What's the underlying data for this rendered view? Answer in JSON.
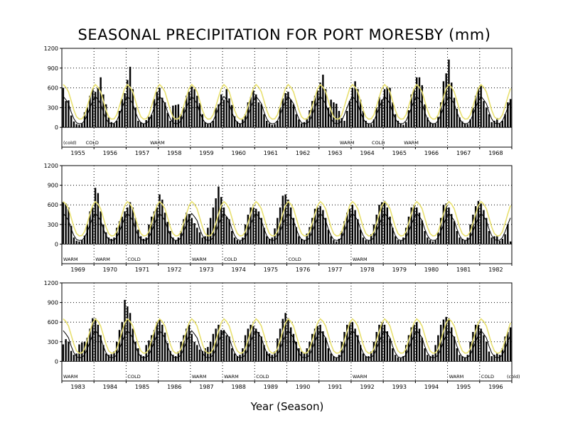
{
  "chart_data": {
    "type": "bar",
    "title": "SEASONAL PRECIPITATION FOR PORT MORESBY (mm)",
    "xlabel": "Year (Season)",
    "ylim": [
      0,
      1200
    ],
    "yticks": [
      0,
      300,
      600,
      900,
      1200
    ],
    "grid": true,
    "colors": {
      "bars": "#000000",
      "mean_line": "#000000",
      "upper_line": "#e8e070"
    },
    "series_info": [
      "seasonal precipitation bars",
      "mean (black line)",
      "upper reference (yellow line)"
    ],
    "climatology": {
      "mean": [
        470,
        420,
        360,
        230,
        130,
        70,
        55,
        60,
        100,
        190,
        300,
        400
      ],
      "upper": [
        650,
        610,
        540,
        400,
        260,
        160,
        125,
        130,
        190,
        320,
        460,
        590
      ]
    },
    "panels": [
      {
        "years": [
          "1955",
          "1956",
          "1957",
          "1958",
          "1959",
          "1960",
          "1961",
          "1962",
          "1963",
          "1964",
          "1965",
          "1966",
          "1967",
          "1968"
        ],
        "bars": [
          [
            600,
            400,
            410,
            180,
            90,
            50,
            40,
            60,
            230,
            300,
            480,
            580
          ],
          [
            540,
            600,
            760,
            500,
            350,
            150,
            80,
            60,
            100,
            250,
            430,
            520
          ],
          [
            720,
            920,
            580,
            300,
            100,
            80,
            60,
            110,
            160,
            190,
            430,
            540
          ],
          [
            600,
            450,
            380,
            220,
            100,
            330,
            340,
            350,
            200,
            300,
            480,
            540
          ],
          [
            620,
            580,
            480,
            370,
            200,
            80,
            50,
            60,
            100,
            300,
            350,
            500
          ],
          [
            420,
            580,
            440,
            340,
            170,
            90,
            60,
            120,
            200,
            380,
            460,
            560
          ],
          [
            500,
            380,
            350,
            200,
            100,
            60,
            40,
            50,
            100,
            300,
            440,
            520
          ],
          [
            540,
            420,
            350,
            200,
            120,
            60,
            80,
            140,
            260,
            400,
            480,
            560
          ],
          [
            680,
            800,
            580,
            300,
            420,
            380,
            360,
            250,
            140,
            100,
            250,
            400
          ],
          [
            600,
            700,
            580,
            420,
            250,
            100,
            60,
            50,
            120,
            300,
            460,
            420
          ],
          [
            580,
            620,
            600,
            380,
            200,
            100,
            60,
            40,
            80,
            260,
            500,
            580
          ],
          [
            760,
            760,
            640,
            350,
            150,
            80,
            60,
            60,
            160,
            380,
            700,
            820
          ],
          [
            1030,
            680,
            450,
            280,
            150,
            90,
            60,
            50,
            120,
            300,
            480,
            590
          ],
          [
            640,
            400,
            300,
            200,
            80,
            100,
            140,
            60,
            100,
            200,
            380,
            430
          ]
        ],
        "annotations": [
          {
            "text": "(cold)",
            "year_index": 0.0
          },
          {
            "text": "COLD",
            "year_index": 0.7
          },
          {
            "text": "WARM",
            "year_index": 2.7
          },
          {
            "text": "WARM",
            "year_index": 8.6
          },
          {
            "text": "COLD",
            "year_index": 9.6
          },
          {
            "text": "WARM",
            "year_index": 10.6
          }
        ]
      },
      {
        "years": [
          "1969",
          "1970",
          "1971",
          "1972",
          "1973",
          "1974",
          "1975",
          "1976",
          "1977",
          "1978",
          "1979",
          "1980",
          "1981",
          "1982"
        ],
        "bars": [
          [
            640,
            620,
            560,
            280,
            100,
            50,
            40,
            60,
            130,
            300,
            500,
            560
          ],
          [
            860,
            780,
            500,
            300,
            180,
            100,
            80,
            100,
            250,
            350,
            420,
            500
          ],
          [
            560,
            640,
            560,
            400,
            220,
            120,
            80,
            100,
            300,
            420,
            500,
            560
          ],
          [
            760,
            680,
            480,
            340,
            200,
            100,
            60,
            100,
            200,
            380,
            480,
            460
          ],
          [
            400,
            320,
            250,
            180,
            100,
            120,
            250,
            400,
            560,
            700,
            880,
            720
          ],
          [
            560,
            420,
            380,
            200,
            100,
            60,
            50,
            100,
            300,
            450,
            560,
            560
          ],
          [
            540,
            500,
            400,
            250,
            120,
            80,
            100,
            240,
            400,
            560,
            740,
            760
          ],
          [
            680,
            560,
            400,
            260,
            120,
            80,
            60,
            160,
            260,
            400,
            540,
            560
          ],
          [
            580,
            520,
            400,
            220,
            120,
            60,
            40,
            80,
            200,
            350,
            480,
            540
          ],
          [
            600,
            520,
            380,
            220,
            100,
            60,
            60,
            150,
            300,
            450,
            600,
            640
          ],
          [
            660,
            560,
            420,
            250,
            120,
            60,
            60,
            100,
            250,
            420,
            560,
            600
          ],
          [
            560,
            480,
            360,
            200,
            100,
            60,
            40,
            60,
            180,
            400,
            600,
            620
          ],
          [
            560,
            460,
            350,
            200,
            100,
            80,
            60,
            100,
            300,
            450,
            580,
            660
          ],
          [
            620,
            520,
            400,
            200,
            100,
            120,
            130,
            50,
            80,
            150,
            300,
            40
          ]
        ],
        "annotations": [
          {
            "text": "WARM",
            "year_index": 0.0
          },
          {
            "text": "WARM",
            "year_index": 1.0
          },
          {
            "text": "COLD",
            "year_index": 2.0
          },
          {
            "text": "WARM",
            "year_index": 4.0
          },
          {
            "text": "COLD",
            "year_index": 5.0
          },
          {
            "text": "COLD",
            "year_index": 7.0
          },
          {
            "text": "WARM",
            "year_index": 9.0
          }
        ]
      },
      {
        "years": [
          "1983",
          "1984",
          "1985",
          "1986",
          "1987",
          "1988",
          "1989",
          "1990",
          "1991",
          "1992",
          "1993",
          "1994",
          "1995",
          "1996"
        ],
        "bars": [
          [
            260,
            340,
            300,
            160,
            100,
            120,
            260,
            290,
            300,
            360,
            500,
            660
          ],
          [
            660,
            560,
            400,
            250,
            120,
            100,
            110,
            150,
            300,
            480,
            600,
            940
          ],
          [
            840,
            740,
            500,
            300,
            200,
            100,
            80,
            250,
            320,
            400,
            480,
            600
          ],
          [
            640,
            560,
            440,
            280,
            160,
            100,
            80,
            150,
            300,
            400,
            500,
            560
          ],
          [
            420,
            300,
            250,
            180,
            160,
            200,
            220,
            300,
            420,
            500,
            560,
            480
          ],
          [
            480,
            400,
            380,
            200,
            120,
            80,
            100,
            200,
            400,
            500,
            560,
            540
          ],
          [
            500,
            450,
            380,
            250,
            150,
            120,
            100,
            150,
            350,
            500,
            650,
            740
          ],
          [
            660,
            520,
            420,
            300,
            200,
            150,
            120,
            200,
            300,
            420,
            500,
            540
          ],
          [
            560,
            460,
            360,
            200,
            120,
            80,
            60,
            100,
            300,
            450,
            560,
            600
          ],
          [
            600,
            500,
            400,
            250,
            120,
            80,
            80,
            150,
            300,
            450,
            560,
            600
          ],
          [
            560,
            460,
            350,
            200,
            100,
            60,
            50,
            80,
            250,
            400,
            520,
            560
          ],
          [
            600,
            500,
            360,
            200,
            100,
            80,
            100,
            250,
            400,
            560,
            640,
            680
          ],
          [
            660,
            520,
            380,
            200,
            100,
            80,
            60,
            100,
            300,
            450,
            560,
            560
          ],
          [
            500,
            400,
            300,
            150,
            80,
            100,
            120,
            100,
            200,
            380,
            450,
            520
          ]
        ],
        "annotations": [
          {
            "text": "WARM",
            "year_index": 0.0
          },
          {
            "text": "COLD",
            "year_index": 2.0
          },
          {
            "text": "WARM",
            "year_index": 4.0
          },
          {
            "text": "WARM",
            "year_index": 5.0
          },
          {
            "text": "COLD",
            "year_index": 6.0
          },
          {
            "text": "WARM",
            "year_index": 9.0
          },
          {
            "text": "WARM",
            "year_index": 12.0
          },
          {
            "text": "COLD",
            "year_index": 13.0
          },
          {
            "text": "(cold)",
            "year_index": 13.8
          }
        ]
      }
    ]
  }
}
